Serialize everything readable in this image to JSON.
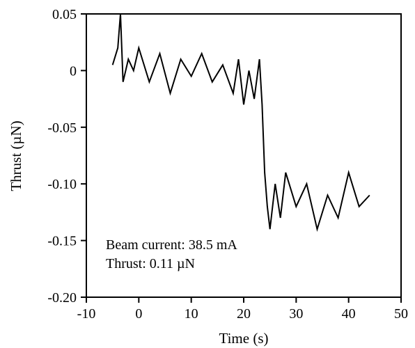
{
  "chart_data": {
    "type": "line",
    "title": "",
    "xlabel": "Time (s)",
    "ylabel": "Thrust (µN)",
    "xlim": [
      -10,
      50
    ],
    "ylim": [
      -0.2,
      0.05
    ],
    "x_ticks": [
      -10,
      0,
      10,
      20,
      30,
      40,
      50
    ],
    "x_tick_labels": [
      "-10",
      "0",
      "10",
      "20",
      "30",
      "40",
      "50"
    ],
    "y_ticks": [
      0.05,
      0,
      -0.05,
      -0.1,
      -0.15,
      -0.2
    ],
    "y_tick_labels": [
      "0.05",
      "0",
      "-0.05",
      "-0.10",
      "-0.15",
      "-0.20"
    ],
    "grid": false,
    "line_color": "#000000",
    "series": [
      {
        "x": [
          -5,
          -4,
          -3.5,
          -3,
          -2,
          -1,
          0,
          2,
          4,
          6,
          8,
          10,
          12,
          14,
          16,
          18,
          19,
          20,
          21,
          22,
          23,
          23.5,
          24,
          24.5,
          25,
          26,
          27,
          28,
          30,
          32,
          34,
          36,
          38,
          40,
          42,
          44
        ],
        "y": [
          0.005,
          0.02,
          0.05,
          -0.01,
          0.01,
          0.0,
          0.02,
          -0.01,
          0.015,
          -0.02,
          0.01,
          -0.005,
          0.015,
          -0.01,
          0.005,
          -0.02,
          0.01,
          -0.03,
          0.0,
          -0.025,
          0.01,
          -0.03,
          -0.09,
          -0.12,
          -0.14,
          -0.1,
          -0.13,
          -0.09,
          -0.12,
          -0.1,
          -0.14,
          -0.11,
          -0.13,
          -0.09,
          -0.12,
          -0.11
        ]
      }
    ],
    "annotations": [
      "Beam current: 38.5 mA",
      "Thrust: 0.11 µN"
    ]
  }
}
